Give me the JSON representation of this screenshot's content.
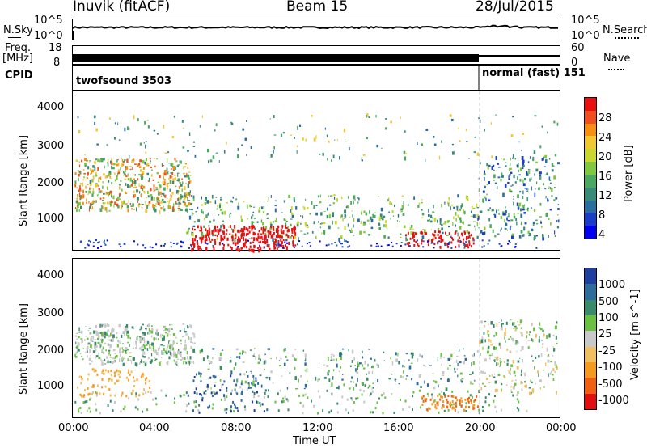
{
  "header": {
    "station": "Inuvik (fitACF)",
    "beam": "Beam 15",
    "date": "28/Jul/2015"
  },
  "top_panels": {
    "nsky_label": "N.Sky",
    "nsearch_label": "N.Search",
    "nsky_ticks": [
      "10^5",
      "10^0"
    ],
    "nsearch_ticks": [
      "10^5",
      "10^0"
    ],
    "freq_label_line1": "Freq.",
    "freq_label_line2": "[MHz]",
    "freq_ticks": [
      "18",
      "8"
    ],
    "nave_label": "Nave",
    "nave_ticks": [
      "60",
      "0"
    ],
    "cpid_label": "CPID",
    "cpid_left": "twofsound 3503",
    "cpid_right": "normal (fast) 151",
    "cpid_switch_time": "20:00"
  },
  "chart_data": [
    {
      "type": "heatmap",
      "name": "power",
      "ylabel": "Slant Range [km]",
      "y_ticks": [
        "4000",
        "3000",
        "2000",
        "1000"
      ],
      "ylim": [
        180,
        4500
      ],
      "colorbar_label": "Power [dB]",
      "colorbar_ticks": [
        "28",
        "24",
        "20",
        "16",
        "12",
        "8",
        "4"
      ],
      "colorbar_colors": [
        "#e81010",
        "#f05020",
        "#f59010",
        "#f0c830",
        "#c8d830",
        "#80c840",
        "#4aa860",
        "#3a8a78",
        "#2a6ea0",
        "#1a3ec8",
        "#0000f0"
      ]
    },
    {
      "type": "heatmap",
      "name": "velocity",
      "ylabel": "Slant Range [km]",
      "y_ticks": [
        "4000",
        "3000",
        "2000",
        "1000"
      ],
      "ylim": [
        180,
        4500
      ],
      "xlabel": "Time UT",
      "x_ticks": [
        "00:00",
        "04:00",
        "08:00",
        "12:00",
        "16:00",
        "20:00",
        "00:00"
      ],
      "colorbar_label": "Velocity [m s^-1]",
      "colorbar_ticks": [
        "1000",
        "500",
        "100",
        "25",
        "-25",
        "-100",
        "-500",
        "-1000"
      ],
      "colorbar_colors": [
        "#1e3ea0",
        "#2e6c9c",
        "#3a8a6c",
        "#6ac040",
        "#c8c8c8",
        "#f0c060",
        "#f59a20",
        "#f06010",
        "#e01010"
      ]
    }
  ]
}
